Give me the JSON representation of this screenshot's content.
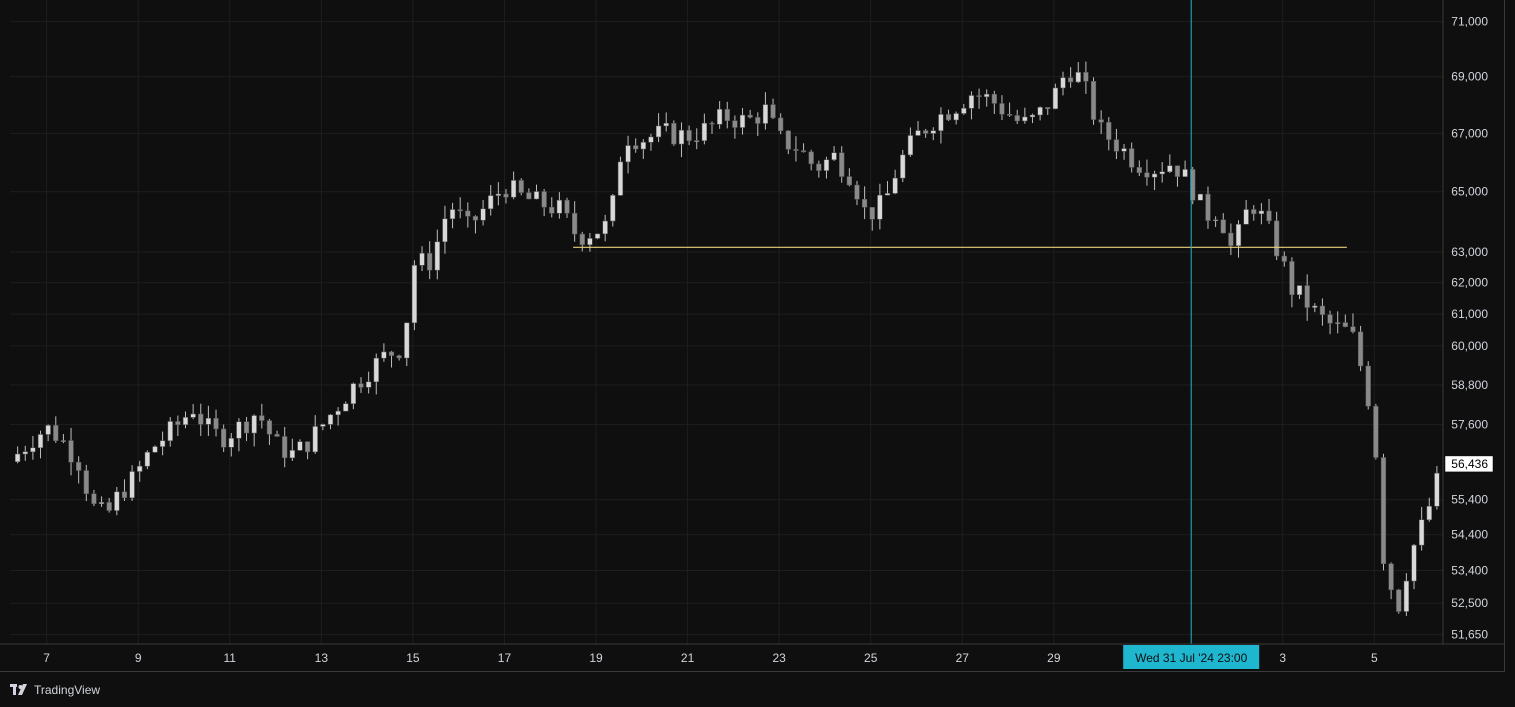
{
  "app": {
    "brand": "TradingView"
  },
  "colors": {
    "background": "#0f0f0f",
    "grid": "#1e1e1e",
    "candle_up": "#d9d9d9",
    "candle_down": "#8a8a8a",
    "wick": "#bdbdbd",
    "hline": "#e8d17a",
    "crosshair": "#1fb6cf",
    "crosshair_label_bg": "#1fb6cf",
    "last_price_bg": "#ffffff",
    "last_price_text": "#000000"
  },
  "chart_data": {
    "type": "candlestick",
    "price_axis": {
      "scale": "log",
      "ticks": [
        51650,
        52500,
        53400,
        54400,
        55400,
        57600,
        58800,
        60000,
        61000,
        62000,
        63000,
        65000,
        67000,
        69000,
        71000
      ],
      "tick_labels": [
        "51,650",
        "52,500",
        "53,400",
        "54,400",
        "55,400",
        "57,600",
        "58,800",
        "60,000",
        "61,000",
        "62,000",
        "63,000",
        "65,000",
        "67,000",
        "69,000",
        "71,000"
      ],
      "range": [
        51400,
        71800
      ]
    },
    "time_axis": {
      "tick_labels": [
        "7",
        "9",
        "11",
        "13",
        "15",
        "17",
        "19",
        "21",
        "23",
        "25",
        "27",
        "29",
        "3",
        "5"
      ],
      "tick_days": [
        7,
        9,
        11,
        13,
        15,
        17,
        19,
        21,
        23,
        25,
        27,
        29,
        34,
        36
      ],
      "range_days": [
        6.2,
        37.5
      ]
    },
    "last_price": {
      "value": 56436,
      "label": "56,436"
    },
    "horizontal_line": {
      "price": 63150,
      "from_day": 18.5,
      "to_day": 35.4
    },
    "crosshair": {
      "day": 32.0,
      "label": "Wed 31 Jul '24   23:00"
    },
    "waypoints": [
      [
        6.2,
        56500
      ],
      [
        6.7,
        57200
      ],
      [
        7.0,
        57500
      ],
      [
        7.3,
        57200
      ],
      [
        7.7,
        56500
      ],
      [
        8.0,
        55200
      ],
      [
        8.3,
        54900
      ],
      [
        8.6,
        55600
      ],
      [
        8.9,
        56000
      ],
      [
        9.3,
        56900
      ],
      [
        9.8,
        57500
      ],
      [
        10.2,
        58100
      ],
      [
        10.5,
        57500
      ],
      [
        10.8,
        57200
      ],
      [
        11.3,
        57600
      ],
      [
        11.6,
        58000
      ],
      [
        12.0,
        57000
      ],
      [
        12.4,
        56700
      ],
      [
        12.8,
        57200
      ],
      [
        13.2,
        57900
      ],
      [
        13.6,
        58600
      ],
      [
        14.0,
        59200
      ],
      [
        14.4,
        59700
      ],
      [
        14.8,
        60000
      ],
      [
        15.0,
        62600
      ],
      [
        15.4,
        62700
      ],
      [
        15.8,
        64600
      ],
      [
        16.2,
        63800
      ],
      [
        16.6,
        64500
      ],
      [
        17.0,
        65200
      ],
      [
        17.4,
        64800
      ],
      [
        17.8,
        64600
      ],
      [
        18.2,
        64400
      ],
      [
        18.6,
        63500
      ],
      [
        19.0,
        63700
      ],
      [
        19.3,
        63900
      ],
      [
        19.6,
        66900
      ],
      [
        20.0,
        66800
      ],
      [
        20.5,
        67000
      ],
      [
        21.0,
        66900
      ],
      [
        21.5,
        67200
      ],
      [
        21.8,
        67600
      ],
      [
        22.3,
        67400
      ],
      [
        22.7,
        67800
      ],
      [
        23.0,
        66800
      ],
      [
        23.4,
        66500
      ],
      [
        23.8,
        65800
      ],
      [
        24.2,
        66200
      ],
      [
        24.6,
        65500
      ],
      [
        24.9,
        64200
      ],
      [
        25.3,
        64600
      ],
      [
        25.6,
        65900
      ],
      [
        26.0,
        66900
      ],
      [
        26.4,
        67500
      ],
      [
        26.8,
        67900
      ],
      [
        27.2,
        68400
      ],
      [
        27.6,
        68200
      ],
      [
        28.0,
        67700
      ],
      [
        28.3,
        67300
      ],
      [
        28.6,
        67500
      ],
      [
        29.0,
        68300
      ],
      [
        29.3,
        69300
      ],
      [
        29.6,
        68900
      ],
      [
        30.0,
        67100
      ],
      [
        30.4,
        66600
      ],
      [
        30.8,
        66000
      ],
      [
        31.2,
        65800
      ],
      [
        31.6,
        66000
      ],
      [
        32.0,
        65200
      ],
      [
        32.3,
        64200
      ],
      [
        32.6,
        64400
      ],
      [
        32.9,
        63000
      ],
      [
        33.3,
        64700
      ],
      [
        33.6,
        64000
      ],
      [
        33.9,
        63000
      ],
      [
        34.2,
        61800
      ],
      [
        34.5,
        61400
      ],
      [
        34.8,
        60900
      ],
      [
        35.1,
        60600
      ],
      [
        35.5,
        60400
      ],
      [
        35.8,
        58900
      ],
      [
        36.0,
        57400
      ],
      [
        36.2,
        53800
      ],
      [
        36.5,
        52300
      ],
      [
        36.8,
        53900
      ],
      [
        37.1,
        54800
      ],
      [
        37.5,
        56436
      ]
    ]
  }
}
